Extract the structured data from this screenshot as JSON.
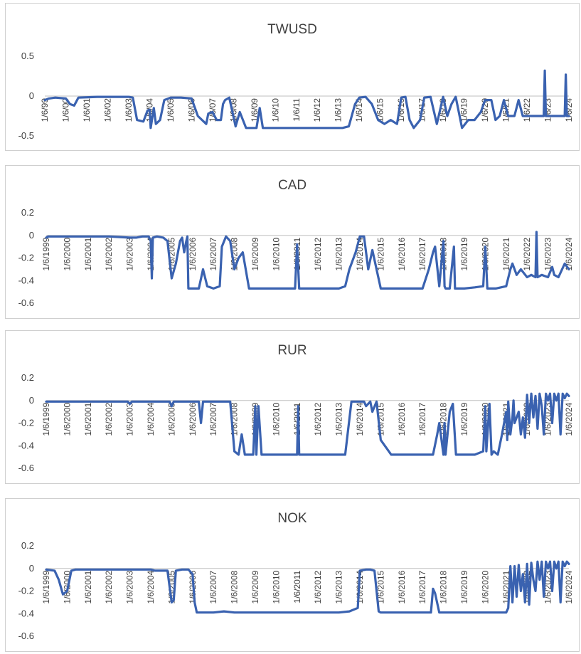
{
  "chart_data": [
    {
      "type": "line",
      "title": "TWUSD",
      "ylim": [
        -0.5,
        0.5
      ],
      "yticks": [
        0.5,
        0,
        -0.5
      ],
      "ytick_labels": [
        "0.5",
        "0",
        "-0.5"
      ],
      "xlim": [
        1999.0,
        2024.0
      ],
      "tick_years": [
        1999,
        2000,
        2001,
        2002,
        2003,
        2004,
        2005,
        2006,
        2007,
        2008,
        2009,
        2010,
        2011,
        2012,
        2013,
        2014,
        2015,
        2016,
        2017,
        2018,
        2019,
        2020,
        2021,
        2022,
        2023,
        2024
      ],
      "tick_labels": [
        "1/6/99",
        "1/6/00",
        "1/6/01",
        "1/6/02",
        "1/6/03",
        "1/6/04",
        "1/6/05",
        "1/6/06",
        "1/6/07",
        "1/6/08",
        "1/6/09",
        "1/6/10",
        "1/6/11",
        "1/6/12",
        "1/6/13",
        "1/6/14",
        "1/6/15",
        "1/6/16",
        "1/6/17",
        "1/6/18",
        "1/6/19",
        "1/6/20",
        "1/6/21",
        "1/6/22",
        "1/6/23",
        "1/6/24"
      ],
      "legend": "none",
      "grid": false,
      "series": [
        {
          "color": "#3a62b0",
          "x": [
            1999.0,
            1999.2,
            1999.5,
            2000.0,
            2000.2,
            2000.4,
            2000.6,
            2001.5,
            2002.5,
            2003.0,
            2003.2,
            2003.4,
            2003.7,
            2003.9,
            2004.0,
            2004.05,
            2004.2,
            2004.3,
            2004.5,
            2004.7,
            2005.0,
            2005.5,
            2006.0,
            2006.3,
            2006.5,
            2006.7,
            2006.8,
            2007.0,
            2007.2,
            2007.4,
            2007.5,
            2007.6,
            2007.8,
            2008.1,
            2008.3,
            2008.6,
            2008.9,
            2009.1,
            2009.25,
            2009.4,
            2009.6,
            2010.0,
            2011.0,
            2012.0,
            2013.0,
            2013.2,
            2013.5,
            2013.8,
            2014.0,
            2014.3,
            2014.6,
            2014.9,
            2015.2,
            2015.5,
            2015.8,
            2016.0,
            2016.2,
            2016.4,
            2016.6,
            2016.9,
            2017.1,
            2017.4,
            2017.7,
            2018.0,
            2018.2,
            2018.4,
            2018.6,
            2018.9,
            2019.2,
            2019.5,
            2019.8,
            2020.0,
            2020.3,
            2020.5,
            2020.7,
            2020.9,
            2021.1,
            2021.3,
            2021.4,
            2021.6,
            2021.8,
            2022.0,
            2022.2,
            2022.5,
            2022.8,
            2022.85,
            2022.9,
            2023.0,
            2023.3,
            2023.6,
            2023.8,
            2023.85,
            2023.9,
            2024.0
          ],
          "y": [
            -0.05,
            -0.03,
            -0.02,
            -0.03,
            -0.1,
            -0.12,
            -0.02,
            -0.01,
            -0.01,
            -0.01,
            -0.02,
            -0.3,
            -0.32,
            -0.18,
            -0.17,
            -0.4,
            -0.15,
            -0.35,
            -0.3,
            -0.05,
            -0.02,
            -0.02,
            -0.03,
            -0.25,
            -0.3,
            -0.35,
            -0.22,
            -0.2,
            -0.3,
            -0.3,
            -0.1,
            -0.05,
            -0.02,
            -0.38,
            -0.2,
            -0.4,
            -0.4,
            -0.4,
            -0.15,
            -0.4,
            -0.4,
            -0.4,
            -0.4,
            -0.4,
            -0.4,
            -0.4,
            -0.38,
            -0.1,
            -0.02,
            -0.01,
            -0.1,
            -0.3,
            -0.35,
            -0.3,
            -0.35,
            -0.02,
            -0.01,
            -0.3,
            -0.4,
            -0.3,
            -0.02,
            -0.01,
            -0.35,
            -0.01,
            -0.25,
            -0.1,
            -0.01,
            -0.4,
            -0.3,
            -0.3,
            -0.2,
            -0.05,
            -0.05,
            -0.3,
            -0.25,
            -0.05,
            -0.25,
            -0.25,
            -0.25,
            -0.05,
            -0.25,
            -0.25,
            -0.25,
            -0.25,
            -0.25,
            0.32,
            -0.25,
            -0.25,
            -0.25,
            -0.25,
            -0.25,
            0.27,
            -0.25,
            -0.25
          ]
        }
      ]
    },
    {
      "type": "line",
      "title": "CAD",
      "ylim": [
        -0.6,
        0.2
      ],
      "yticks": [
        0.2,
        0,
        -0.2,
        -0.4,
        -0.6
      ],
      "ytick_labels": [
        "0.2",
        "0",
        "-0.2",
        "-0.4",
        "-0.6"
      ],
      "xlim": [
        1999.0,
        2024.0
      ],
      "tick_years": [
        1999,
        2000,
        2001,
        2002,
        2003,
        2004,
        2005,
        2006,
        2007,
        2008,
        2009,
        2010,
        2011,
        2012,
        2013,
        2014,
        2015,
        2016,
        2017,
        2018,
        2019,
        2020,
        2021,
        2022,
        2023,
        2024
      ],
      "tick_labels": [
        "1/6/1999",
        "1/6/2000",
        "1/6/2001",
        "1/6/2002",
        "1/6/2003",
        "1/6/2004",
        "1/6/2005",
        "1/6/2006",
        "1/6/2007",
        "1/6/2008",
        "1/6/2009",
        "1/6/2010",
        "1/6/2011",
        "1/6/2012",
        "1/6/2013",
        "1/6/2014",
        "1/6/2015",
        "1/6/2016",
        "1/6/2017",
        "1/6/2018",
        "1/6/2019",
        "1/6/2020",
        "1/6/2021",
        "1/6/2022",
        "1/6/2023",
        "1/6/2024"
      ],
      "legend": "none",
      "grid": false,
      "series": [
        {
          "color": "#3a62b0",
          "x": [
            1999.0,
            1999.1,
            1999.2,
            2000.0,
            2001.0,
            2002.0,
            2003.0,
            2003.3,
            2003.6,
            2003.9,
            2004.0,
            2004.05,
            2004.1,
            2004.3,
            2004.6,
            2004.8,
            2005.0,
            2005.2,
            2005.4,
            2005.5,
            2005.6,
            2005.7,
            2005.75,
            2005.8,
            2006.0,
            2006.3,
            2006.5,
            2006.7,
            2007.0,
            2007.3,
            2007.4,
            2007.6,
            2007.8,
            2008.0,
            2008.2,
            2008.4,
            2008.7,
            2008.9,
            2009.0,
            2009.5,
            2010.0,
            2010.5,
            2010.9,
            2011.0,
            2011.1,
            2011.5,
            2012.0,
            2013.0,
            2013.3,
            2013.5,
            2013.8,
            2014.0,
            2014.2,
            2014.4,
            2014.6,
            2014.8,
            2015.0,
            2015.5,
            2016.0,
            2017.0,
            2017.3,
            2017.5,
            2017.6,
            2017.8,
            2018.0,
            2018.05,
            2018.1,
            2018.3,
            2018.5,
            2018.55,
            2018.6,
            2019.0,
            2019.5,
            2019.9,
            2020.0,
            2020.1,
            2020.5,
            2021.0,
            2021.2,
            2021.3,
            2021.5,
            2021.7,
            2022.0,
            2022.2,
            2022.4,
            2022.45,
            2022.5,
            2022.7,
            2023.0,
            2023.2,
            2023.3,
            2023.5,
            2023.8,
            2024.0
          ],
          "y": [
            -0.02,
            -0.01,
            -0.01,
            -0.01,
            -0.01,
            -0.01,
            -0.02,
            -0.02,
            -0.01,
            -0.01,
            -0.05,
            -0.38,
            -0.02,
            -0.01,
            -0.02,
            -0.05,
            -0.38,
            -0.25,
            -0.05,
            -0.02,
            -0.15,
            -0.05,
            -0.01,
            -0.47,
            -0.47,
            -0.47,
            -0.3,
            -0.45,
            -0.47,
            -0.45,
            -0.1,
            -0.01,
            -0.05,
            -0.3,
            -0.2,
            -0.15,
            -0.47,
            -0.47,
            -0.47,
            -0.47,
            -0.47,
            -0.47,
            -0.47,
            -0.08,
            -0.47,
            -0.47,
            -0.47,
            -0.47,
            -0.45,
            -0.3,
            -0.15,
            -0.01,
            -0.01,
            -0.3,
            -0.13,
            -0.3,
            -0.47,
            -0.47,
            -0.47,
            -0.47,
            -0.3,
            -0.15,
            -0.1,
            -0.45,
            -0.05,
            -0.45,
            -0.47,
            -0.47,
            -0.1,
            -0.47,
            -0.47,
            -0.47,
            -0.46,
            -0.45,
            -0.1,
            -0.47,
            -0.47,
            -0.45,
            -0.3,
            -0.25,
            -0.35,
            -0.3,
            -0.37,
            -0.35,
            -0.37,
            0.03,
            -0.37,
            -0.35,
            -0.37,
            -0.28,
            -0.35,
            -0.37,
            -0.25,
            -0.3
          ]
        }
      ]
    },
    {
      "type": "line",
      "title": "RUR",
      "ylim": [
        -0.6,
        0.2
      ],
      "yticks": [
        0.2,
        0,
        -0.2,
        -0.4,
        -0.6
      ],
      "ytick_labels": [
        "0.2",
        "0",
        "-0.2",
        "-0.4",
        "-0.6"
      ],
      "xlim": [
        1999.0,
        2024.0
      ],
      "tick_years": [
        1999,
        2000,
        2001,
        2002,
        2003,
        2004,
        2005,
        2006,
        2007,
        2008,
        2009,
        2010,
        2011,
        2012,
        2013,
        2014,
        2015,
        2016,
        2017,
        2018,
        2019,
        2020,
        2021,
        2022,
        2023,
        2024
      ],
      "tick_labels": [
        "1/6/1999",
        "1/6/2000",
        "1/6/2001",
        "1/6/2002",
        "1/6/2003",
        "1/6/2004",
        "1/6/2005",
        "1/6/2006",
        "1/6/2007",
        "1/6/2008",
        "1/6/2009",
        "1/6/2010",
        "1/6/2011",
        "1/6/2012",
        "1/6/2013",
        "1/6/2014",
        "1/6/2015",
        "1/6/2016",
        "1/6/2017",
        "1/6/2018",
        "1/6/2019",
        "1/6/2020",
        "1/6/2021",
        "1/6/2022",
        "1/6/2023",
        "1/6/2024"
      ],
      "legend": "none",
      "grid": false,
      "series": [
        {
          "color": "#3a62b0",
          "x": [
            1999.0,
            2000.0,
            2001.0,
            2002.0,
            2002.9,
            2003.0,
            2003.1,
            2004.0,
            2004.9,
            2005.0,
            2005.1,
            2006.0,
            2006.3,
            2006.4,
            2006.5,
            2007.0,
            2007.8,
            2008.0,
            2008.2,
            2008.35,
            2008.5,
            2008.9,
            2009.0,
            2009.05,
            2009.15,
            2009.3,
            2010.0,
            2011.0,
            2011.05,
            2011.1,
            2011.2,
            2012.0,
            2013.0,
            2013.3,
            2013.6,
            2014.0,
            2014.2,
            2014.3,
            2014.5,
            2014.6,
            2014.8,
            2015.0,
            2015.5,
            2016.0,
            2017.0,
            2017.5,
            2017.7,
            2017.8,
            2018.0,
            2018.05,
            2018.1,
            2018.3,
            2018.45,
            2018.6,
            2019.0,
            2019.5,
            2019.9,
            2020.0,
            2020.05,
            2020.2,
            2020.3,
            2020.4,
            2020.6,
            2020.8,
            2021.0,
            2021.05,
            2021.1,
            2021.2,
            2021.3,
            2021.35,
            2021.4,
            2021.5,
            2021.6,
            2021.7,
            2021.8,
            2021.9,
            2022.0,
            2022.1,
            2022.2,
            2022.3,
            2022.4,
            2022.5,
            2022.6,
            2022.7,
            2022.8,
            2022.9,
            2023.0,
            2023.1,
            2023.2,
            2023.3,
            2023.4,
            2023.5,
            2023.6,
            2023.7,
            2023.8,
            2023.9,
            2024.0
          ],
          "y": [
            -0.01,
            -0.01,
            -0.01,
            -0.01,
            -0.01,
            -0.03,
            -0.01,
            -0.01,
            -0.01,
            -0.05,
            -0.01,
            -0.01,
            -0.01,
            -0.2,
            -0.01,
            -0.01,
            -0.01,
            -0.45,
            -0.48,
            -0.3,
            -0.48,
            -0.48,
            -0.05,
            -0.48,
            -0.05,
            -0.48,
            -0.48,
            -0.48,
            -0.05,
            -0.48,
            -0.48,
            -0.48,
            -0.48,
            -0.48,
            -0.01,
            -0.01,
            -0.01,
            -0.05,
            -0.01,
            -0.1,
            -0.01,
            -0.35,
            -0.48,
            -0.48,
            -0.48,
            -0.48,
            -0.3,
            -0.2,
            -0.48,
            -0.2,
            -0.48,
            -0.1,
            -0.03,
            -0.48,
            -0.48,
            -0.48,
            -0.45,
            -0.05,
            -0.45,
            -0.03,
            -0.48,
            -0.45,
            -0.48,
            -0.3,
            -0.1,
            -0.35,
            -0.01,
            -0.3,
            -0.15,
            0.0,
            -0.2,
            -0.15,
            -0.1,
            -0.3,
            -0.15,
            -0.33,
            0.05,
            -0.2,
            0.06,
            -0.15,
            0.04,
            -0.25,
            0.06,
            -0.05,
            -0.3,
            0.06,
            0.0,
            0.06,
            -0.2,
            0.06,
            0.0,
            0.06,
            -0.3,
            0.06,
            0.02,
            0.06,
            0.04
          ]
        }
      ]
    },
    {
      "type": "line",
      "title": "NOK",
      "ylim": [
        -0.6,
        0.2
      ],
      "yticks": [
        0.2,
        0,
        -0.2,
        -0.4,
        -0.6
      ],
      "ytick_labels": [
        "0.2",
        "0",
        "-0.2",
        "-0.4",
        "-0.6"
      ],
      "xlim": [
        1999.0,
        2024.0
      ],
      "tick_years": [
        1999,
        2000,
        2001,
        2002,
        2003,
        2004,
        2005,
        2006,
        2007,
        2008,
        2009,
        2010,
        2011,
        2012,
        2013,
        2014,
        2015,
        2016,
        2017,
        2018,
        2019,
        2020,
        2021,
        2022,
        2023,
        2024
      ],
      "tick_labels": [
        "1/6/1999",
        "1/6/2000",
        "1/6/2001",
        "1/6/2002",
        "1/6/2003",
        "1/6/2004",
        "1/6/2005",
        "1/6/2006",
        "1/6/2007",
        "1/6/2008",
        "1/6/2009",
        "1/6/2010",
        "1/6/2011",
        "1/6/2012",
        "1/6/2013",
        "1/6/2014",
        "1/6/2015",
        "1/6/2016",
        "1/6/2017",
        "1/6/2018",
        "1/6/2019",
        "1/6/2020",
        "1/6/2021",
        "1/6/2022",
        "1/6/2023",
        "1/6/2024"
      ],
      "legend": "none",
      "grid": false,
      "series": [
        {
          "color": "#3a62b0",
          "x": [
            1999.0,
            1999.4,
            1999.6,
            1999.8,
            2000.0,
            2000.2,
            2000.4,
            2001.0,
            2002.0,
            2003.0,
            2004.0,
            2004.2,
            2004.4,
            2004.8,
            2005.0,
            2005.1,
            2005.2,
            2005.5,
            2005.8,
            2006.0,
            2006.1,
            2006.2,
            2006.4,
            2007.0,
            2007.5,
            2008.0,
            2009.0,
            2010.0,
            2011.0,
            2012.0,
            2013.0,
            2013.5,
            2013.9,
            2014.0,
            2014.3,
            2014.5,
            2014.7,
            2014.9,
            2015.0,
            2016.0,
            2017.0,
            2017.4,
            2017.5,
            2017.6,
            2017.8,
            2017.9,
            2018.0,
            2019.0,
            2020.0,
            2021.0,
            2021.1,
            2021.2,
            2021.3,
            2021.4,
            2021.5,
            2021.6,
            2021.7,
            2021.8,
            2021.9,
            2022.0,
            2022.1,
            2022.2,
            2022.3,
            2022.4,
            2022.5,
            2022.6,
            2022.7,
            2022.8,
            2022.9,
            2023.0,
            2023.1,
            2023.2,
            2023.3,
            2023.4,
            2023.5,
            2023.6,
            2023.7,
            2023.8,
            2023.9,
            2024.0
          ],
          "y": [
            -0.01,
            -0.02,
            -0.1,
            -0.23,
            -0.2,
            -0.02,
            -0.01,
            -0.01,
            -0.01,
            -0.01,
            -0.01,
            -0.02,
            -0.02,
            -0.02,
            -0.3,
            -0.28,
            -0.02,
            -0.01,
            -0.01,
            -0.05,
            -0.3,
            -0.39,
            -0.39,
            -0.39,
            -0.38,
            -0.39,
            -0.39,
            -0.39,
            -0.39,
            -0.39,
            -0.39,
            -0.38,
            -0.35,
            -0.02,
            -0.01,
            -0.01,
            -0.02,
            -0.38,
            -0.39,
            -0.39,
            -0.39,
            -0.39,
            -0.18,
            -0.22,
            -0.39,
            -0.39,
            -0.39,
            -0.39,
            -0.39,
            -0.39,
            -0.35,
            0.02,
            -0.3,
            0.02,
            -0.25,
            0.03,
            -0.2,
            -0.05,
            -0.3,
            0.04,
            -0.32,
            0.05,
            -0.1,
            -0.2,
            0.06,
            -0.1,
            0.06,
            -0.25,
            0.06,
            0.0,
            0.06,
            -0.2,
            0.06,
            0.0,
            0.06,
            -0.3,
            0.06,
            0.02,
            0.06,
            0.04
          ]
        }
      ]
    }
  ]
}
